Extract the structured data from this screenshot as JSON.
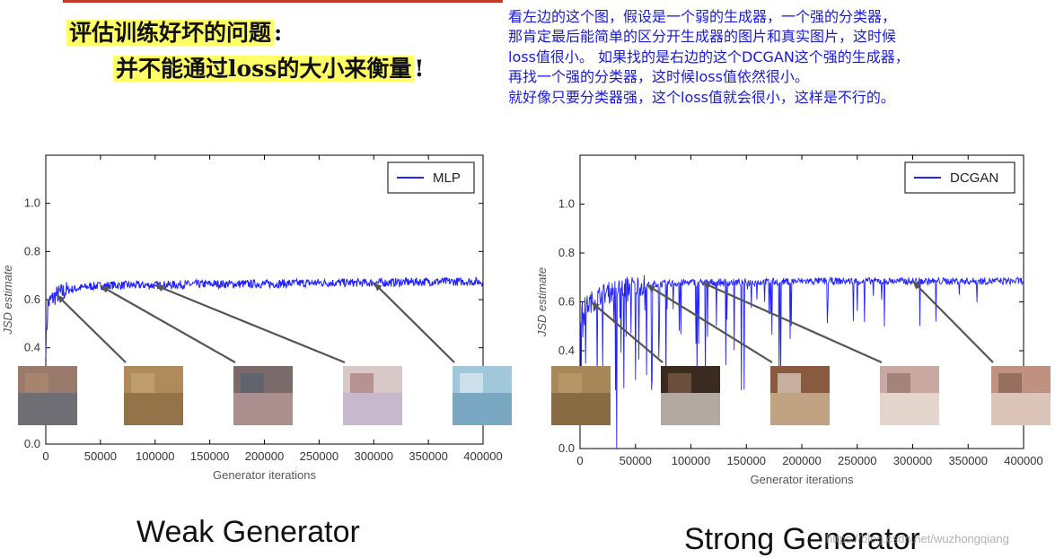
{
  "heading": {
    "line1_main": "评估训练好坏的问题",
    "line1_colon": ":",
    "line2_main": "并不能通过loss的大小来衡量",
    "line2_end": "!"
  },
  "note": {
    "lines": [
      "看左边的这个图，假设是一个弱的生成器，一个强的分类器，",
      "那肯定最后能简单的区分开生成器的图片和真实图片，这时候",
      "loss值很小。  如果找的是右边的这个DCGAN这个强的生成器，",
      "再找一个强的分类器，这时候loss值依然很小。",
      "就好像只要分类器强，这个loss值就会很小，这样是不行的。"
    ]
  },
  "captions": {
    "left": "Weak Generator",
    "right": "Strong Generator"
  },
  "watermark": "https://blog.csdn.net/wuzhongqiang",
  "colors": {
    "series": "#2222ff",
    "note": "#1a1ad6",
    "highlight": "#ffff66"
  },
  "chart_data": [
    {
      "type": "line",
      "series": [
        {
          "name": "MLP",
          "x": [
            0,
            2000,
            5000,
            10000,
            20000,
            40000,
            60000,
            100000,
            150000,
            200000,
            250000,
            300000,
            350000,
            400000
          ],
          "y": [
            0.4,
            0.58,
            0.6,
            0.62,
            0.64,
            0.655,
            0.66,
            0.66,
            0.665,
            0.665,
            0.67,
            0.67,
            0.675,
            0.675
          ]
        }
      ],
      "xlabel": "Generator iterations",
      "ylabel": "JSD estimate",
      "xlim": [
        0,
        400000
      ],
      "ylim": [
        0,
        1.2
      ],
      "xticks": [
        "0",
        "50000",
        "100000",
        "150000",
        "200000",
        "250000",
        "300000",
        "350000",
        "400000"
      ],
      "yticks": [
        "0.0",
        "0.2",
        "0.4",
        "0.6",
        "0.8",
        "1.0"
      ],
      "legend": "top-right",
      "annotation_x": [
        10000,
        50000,
        100000,
        300000
      ]
    },
    {
      "type": "line",
      "series": [
        {
          "name": "DCGAN",
          "x": [
            0,
            5000,
            10000,
            20000,
            40000,
            60000,
            100000,
            150000,
            200000,
            250000,
            300000,
            350000,
            400000
          ],
          "y": [
            0.55,
            0.58,
            0.6,
            0.63,
            0.66,
            0.67,
            0.68,
            0.68,
            0.685,
            0.685,
            0.685,
            0.685,
            0.685
          ]
        }
      ],
      "xlabel": "Generator iterations",
      "ylabel": "JSD estimate",
      "xlim": [
        0,
        400000
      ],
      "ylim": [
        0,
        1.2
      ],
      "xticks": [
        "0",
        "50000",
        "100000",
        "150000",
        "200000",
        "250000",
        "300000",
        "350000",
        "400000"
      ],
      "yticks": [
        "0.0",
        "0.2",
        "0.4",
        "0.6",
        "0.8",
        "1.0"
      ],
      "legend": "top-right",
      "annotation_x": [
        10000,
        60000,
        110000,
        300000
      ]
    }
  ]
}
